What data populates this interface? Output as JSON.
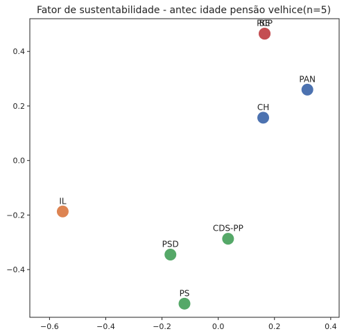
{
  "chart_data": {
    "type": "scatter",
    "title": "Fator de sustentabilidade - antec idade pensão velhice(n=5)",
    "xlabel": "",
    "ylabel": "",
    "xlim": [
      -0.67,
      0.43
    ],
    "ylim": [
      -0.575,
      0.52
    ],
    "xticks": [
      -0.6,
      -0.4,
      -0.2,
      0.0,
      0.2,
      0.4
    ],
    "yticks": [
      -0.4,
      -0.2,
      0.0,
      0.2,
      0.4
    ],
    "xtick_labels": [
      "−0.6",
      "−0.4",
      "−0.2",
      "0.0",
      "0.2",
      "0.4"
    ],
    "ytick_labels": [
      "−0.4",
      "−0.2",
      "0.0",
      "0.2",
      "0.4"
    ],
    "grid": false,
    "legend": "none",
    "points": [
      {
        "label": "BE",
        "x": 0.165,
        "y": 0.465,
        "color": "#c44e52"
      },
      {
        "label": "PCP",
        "x": 0.165,
        "y": 0.465,
        "color": "#c44e52"
      },
      {
        "label": "PAN",
        "x": 0.317,
        "y": 0.26,
        "color": "#4c72b0"
      },
      {
        "label": "CH",
        "x": 0.16,
        "y": 0.157,
        "color": "#4c72b0"
      },
      {
        "label": "IL",
        "x": -0.553,
        "y": -0.187,
        "color": "#dd8452"
      },
      {
        "label": "CDS-PP",
        "x": 0.035,
        "y": -0.287,
        "color": "#55a868"
      },
      {
        "label": "PSD",
        "x": -0.17,
        "y": -0.345,
        "color": "#55a868"
      },
      {
        "label": "PS",
        "x": -0.12,
        "y": -0.525,
        "color": "#55a868"
      }
    ]
  }
}
